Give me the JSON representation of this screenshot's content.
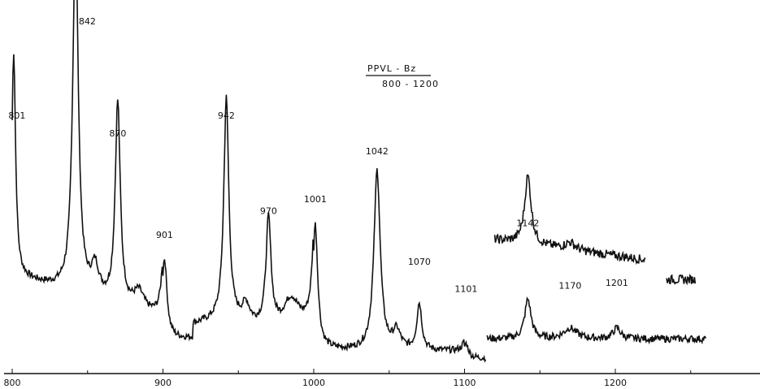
{
  "chart_data": {
    "type": "line",
    "title": "PPVL - Bz",
    "subtitle": "800 - 1200",
    "xlim": [
      800,
      1260
    ],
    "x_ticks": [
      800,
      900,
      1000,
      1100,
      1200
    ],
    "peaks": [
      {
        "x": 801,
        "label": "801",
        "height": 0.62
      },
      {
        "x": 842,
        "label": "842",
        "height": 1.0
      },
      {
        "x": 870,
        "label": "870",
        "height": 0.56
      },
      {
        "x": 901,
        "label": "901",
        "height": 0.22
      },
      {
        "x": 942,
        "label": "942",
        "height": 0.62
      },
      {
        "x": 970,
        "label": "970",
        "height": 0.3
      },
      {
        "x": 1001,
        "label": "1001",
        "height": 0.34
      },
      {
        "x": 1042,
        "label": "1042",
        "height": 0.5
      },
      {
        "x": 1070,
        "label": "1070",
        "height": 0.13
      },
      {
        "x": 1101,
        "label": "1101",
        "height": 0.04
      },
      {
        "x": 1142,
        "label": "1142",
        "height": 0.26
      },
      {
        "x": 1170,
        "label": "1170",
        "height": 0.05
      },
      {
        "x": 1201,
        "label": "1201",
        "height": 0.06
      }
    ],
    "inset_label": "1142"
  }
}
